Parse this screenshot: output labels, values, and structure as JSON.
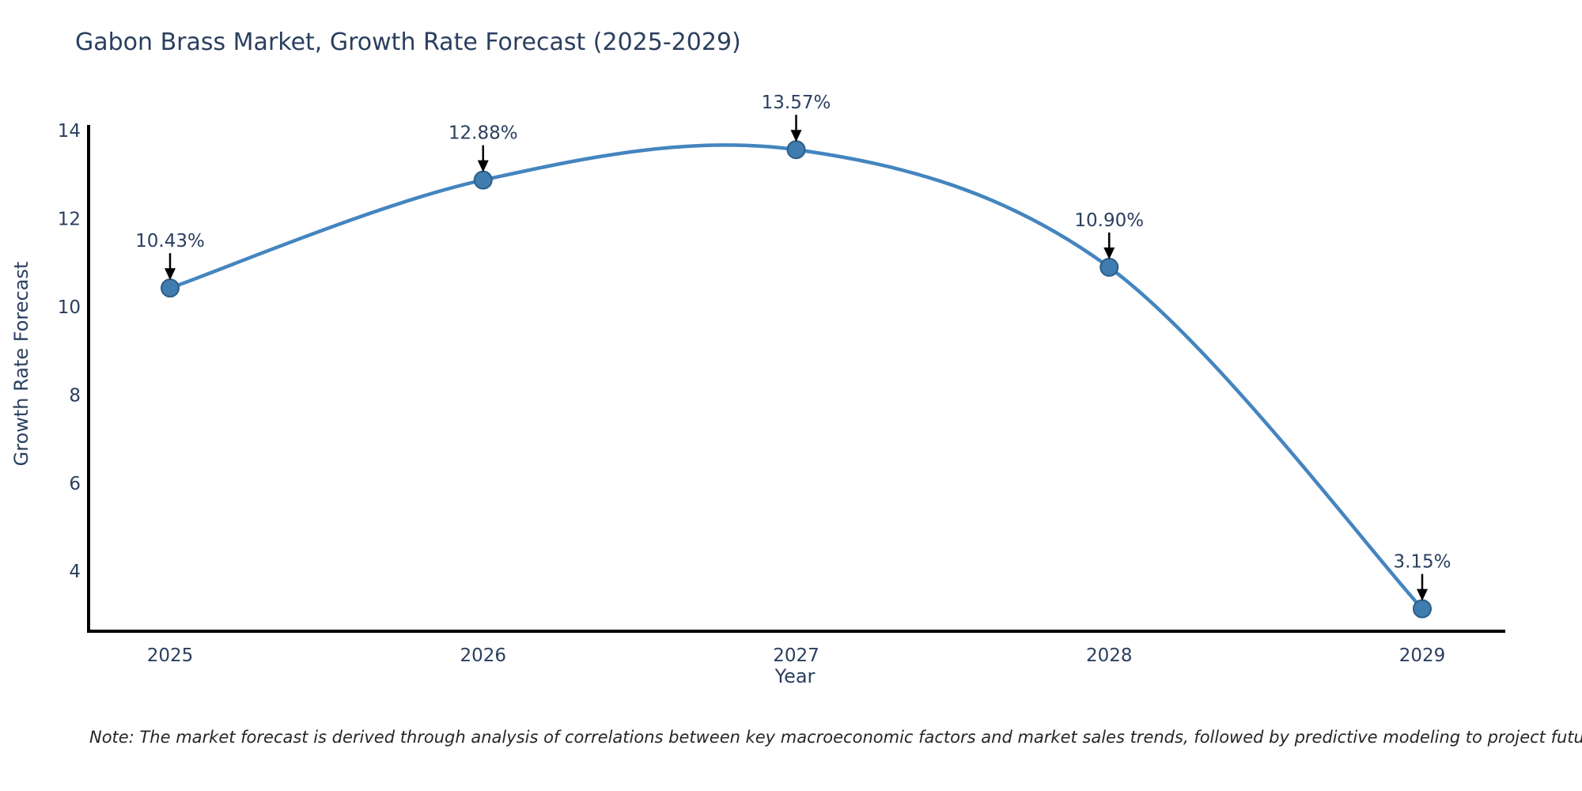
{
  "note": "Note: The market forecast is derived through analysis of correlations between key macroeconomic factors and market sales trends, followed by predictive modeling to project future sales",
  "chart_data": {
    "type": "line",
    "title": "Gabon Brass Market, Growth Rate Forecast (2025-2029)",
    "xlabel": "Year",
    "ylabel": "Growth Rate Forecast",
    "categories": [
      "2025",
      "2026",
      "2027",
      "2028",
      "2029"
    ],
    "values": [
      10.43,
      12.88,
      13.57,
      10.9,
      3.15
    ],
    "point_labels": [
      "10.43%",
      "12.88%",
      "13.57%",
      "10.90%",
      "3.15%"
    ],
    "yticks": [
      4,
      6,
      8,
      10,
      12,
      14
    ],
    "ylim": [
      2.64,
      14.13
    ],
    "line_shape": "spline",
    "grid": false,
    "legend": "none",
    "colors": {
      "line": "#4485bf",
      "marker_fill": "#3f7cb0",
      "marker_edge": "#2c5d85",
      "axis": "#000000",
      "arrow": "#000000",
      "text": "#2a3f5f",
      "background": "#ffffff"
    }
  }
}
